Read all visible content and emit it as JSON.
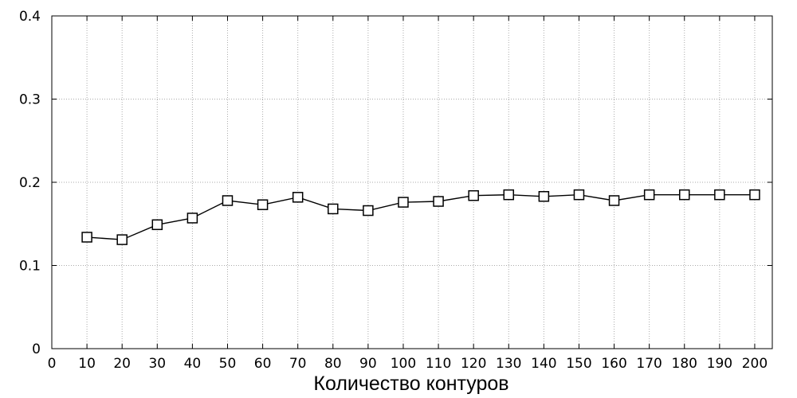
{
  "chart_data": {
    "type": "line",
    "title": "",
    "xlabel": "Количество контуров",
    "ylabel": "",
    "xlim": [
      0,
      205
    ],
    "ylim": [
      0,
      0.4
    ],
    "x_ticks": [
      0,
      10,
      20,
      30,
      40,
      50,
      60,
      70,
      80,
      90,
      100,
      110,
      120,
      130,
      140,
      150,
      160,
      170,
      180,
      190,
      200
    ],
    "x_tick_labels": [
      "0",
      "10",
      "20",
      "30",
      "40",
      "50",
      "60",
      "70",
      "80",
      "90",
      "100",
      "110",
      "120",
      "130",
      "140",
      "150",
      "160",
      "170",
      "180",
      "190",
      "200"
    ],
    "y_ticks": [
      0,
      0.1,
      0.2,
      0.3,
      0.4
    ],
    "y_tick_labels": [
      "0",
      "0.1",
      "0.2",
      "0.3",
      "0.4"
    ],
    "grid": true,
    "grid_style": "dotted",
    "legend": "none",
    "series": [
      {
        "marker": "open-square",
        "color": "#000000",
        "x": [
          10,
          20,
          30,
          40,
          50,
          60,
          70,
          80,
          90,
          100,
          110,
          120,
          130,
          140,
          150,
          160,
          170,
          180,
          190,
          200
        ],
        "y": [
          0.134,
          0.131,
          0.149,
          0.157,
          0.178,
          0.173,
          0.182,
          0.168,
          0.166,
          0.176,
          0.177,
          0.184,
          0.185,
          0.183,
          0.185,
          0.178,
          0.185,
          0.185,
          0.185,
          0.185
        ]
      }
    ]
  }
}
